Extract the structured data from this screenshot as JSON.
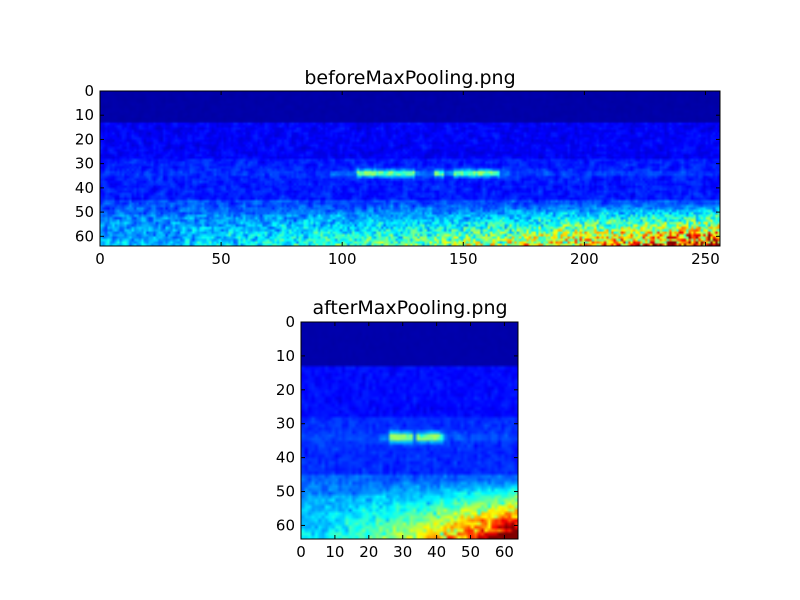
{
  "chart_data": [
    {
      "type": "heatmap",
      "title": "beforeMaxPooling.png",
      "xlabel": "",
      "ylabel": "",
      "xlim": [
        0,
        256
      ],
      "ylim": [
        64,
        0
      ],
      "x_ticks": [
        "0",
        "50",
        "100",
        "150",
        "200",
        "250"
      ],
      "y_ticks": [
        "0",
        "10",
        "20",
        "30",
        "40",
        "50",
        "60"
      ],
      "colormap": "jet",
      "grid": false,
      "notes": "spectrogram-like image, dark blue top region (rows 0-13), bright horizontal band near row 33 between x 105-165, high intensity (yellow/red) speckle at bottom right rows 50-64, x 170-256"
    },
    {
      "type": "heatmap",
      "title": "afterMaxPooling.png",
      "xlabel": "",
      "ylabel": "",
      "xlim": [
        0,
        64
      ],
      "ylim": [
        64,
        0
      ],
      "x_ticks": [
        "0",
        "10",
        "20",
        "30",
        "40",
        "50",
        "60"
      ],
      "y_ticks": [
        "0",
        "10",
        "20",
        "30",
        "40",
        "50",
        "60"
      ],
      "colormap": "jet",
      "grid": false,
      "notes": "same image max-pooled horizontally by 4: band near row 33 at x 27-40, hot region bottom right rows 45-64, x 40-64"
    }
  ]
}
